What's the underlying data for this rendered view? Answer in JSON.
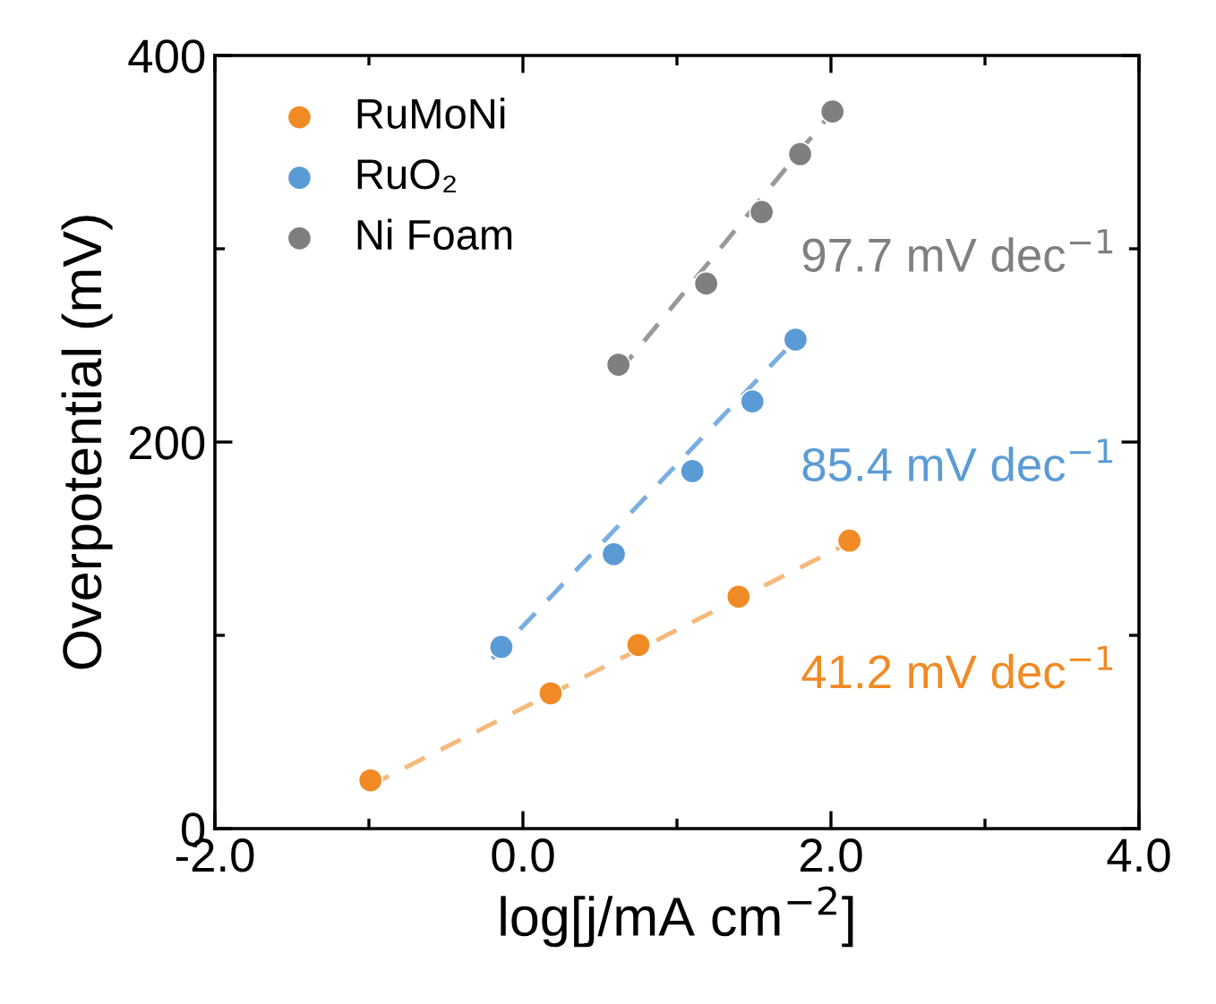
{
  "chart_data": {
    "type": "scatter",
    "xlabel": "log[j/mA cm$^{−2}$]",
    "ylabel": "Overpotential (mV)",
    "xlim": [
      -2,
      4
    ],
    "ylim": [
      0,
      400
    ],
    "xticks": [
      {
        "value": -2,
        "label": "-2.0"
      },
      {
        "value": -1,
        "label": null
      },
      {
        "value": 0,
        "label": "0.0"
      },
      {
        "value": 1,
        "label": null
      },
      {
        "value": 2,
        "label": "2.0"
      },
      {
        "value": 3,
        "label": null
      },
      {
        "value": 4,
        "label": "4.0"
      }
    ],
    "yticks": [
      0,
      {
        "value": 100,
        "label": null
      },
      200,
      {
        "value": 300,
        "label": null
      },
      400
    ],
    "marker": "circle",
    "legend": "top left",
    "grid": false,
    "series": [
      {
        "name": "RuMoNi",
        "color": "#f08a24",
        "x": [
          -0.99,
          0.18,
          0.75,
          1.4,
          2.12
        ],
        "values": [
          25,
          70,
          95,
          120,
          149
        ]
      },
      {
        "name": "RuO₂",
        "color": "#5b9bd5",
        "x": [
          -0.14,
          0.59,
          1.1,
          1.49,
          1.77
        ],
        "values": [
          94,
          142,
          185,
          221,
          253
        ]
      },
      {
        "name": "Ni Foam",
        "color": "#7f7f7f",
        "x": [
          0.62,
          1.19,
          1.55,
          1.8,
          2.01
        ],
        "values": [
          240,
          282,
          319,
          349,
          371
        ]
      },
      {
        "type": "line",
        "line_style": "dashed",
        "marker": "none",
        "color": "#f5b97c",
        "x": [
          -1.0,
          2.12
        ],
        "values": [
          22,
          148
        ]
      },
      {
        "type": "line",
        "line_style": "dashed",
        "marker": "none",
        "color": "#7aaee0",
        "x": [
          -0.2,
          1.77
        ],
        "values": [
          88,
          253
        ]
      },
      {
        "type": "line",
        "line_style": "dashed",
        "marker": "none",
        "color": "#999999",
        "x": [
          0.62,
          2.01
        ],
        "values": [
          236,
          371
        ]
      }
    ],
    "annotations": [
      "41.2 mV dec$^{−1}$",
      "85.4 mV dec$^{−1}$",
      "97.7 mV dec$^{−1}$"
    ]
  }
}
